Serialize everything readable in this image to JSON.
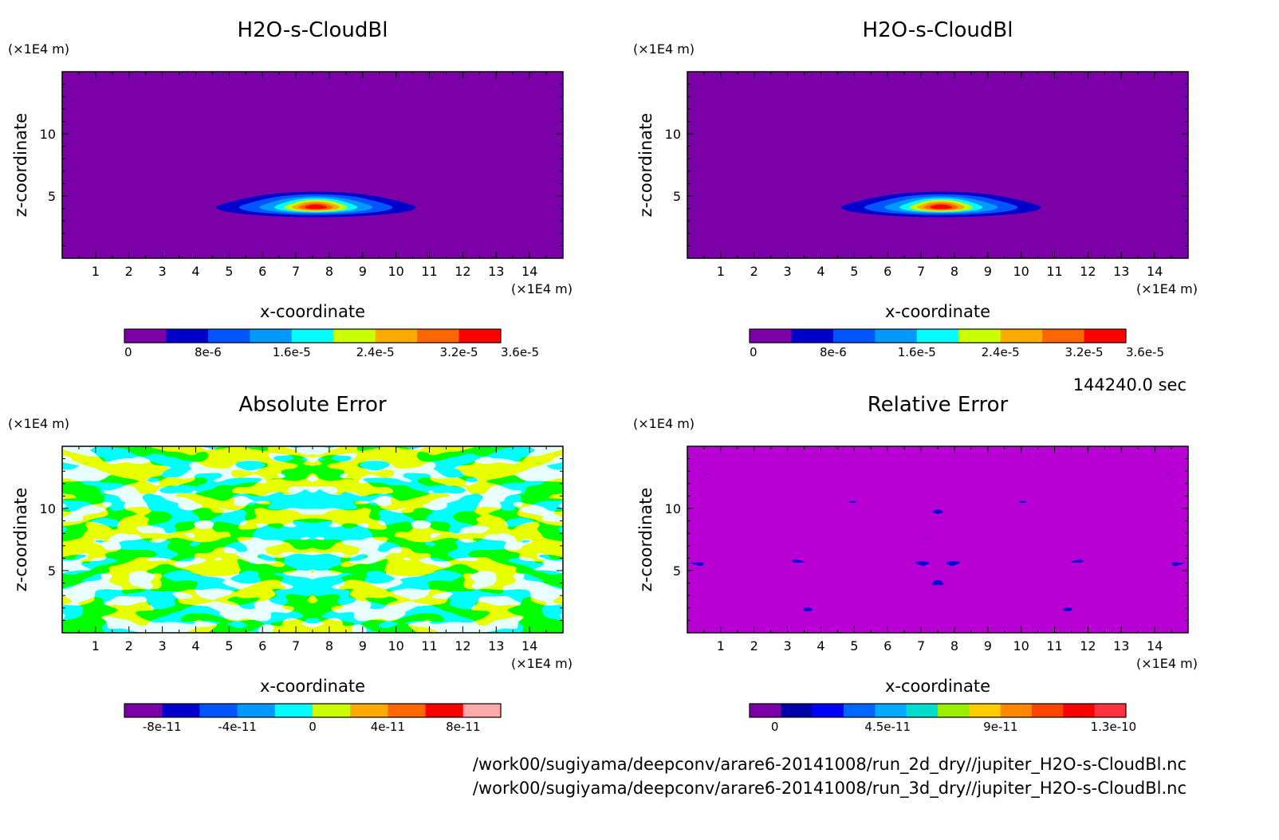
{
  "chart_data": [
    {
      "type": "heatmap",
      "title": "H2O-s-CloudBl",
      "xlabel": "x-coordinate",
      "ylabel": "z-coordinate",
      "x_unit": "(×1E4 m)",
      "y_unit": "(×1E4 m)",
      "xlim": [
        0,
        15
      ],
      "ylim": [
        0,
        15
      ],
      "x_ticks": [
        "1",
        "2",
        "3",
        "4",
        "5",
        "6",
        "7",
        "8",
        "9",
        "10",
        "11",
        "12",
        "13",
        "14"
      ],
      "y_ticks": [
        "5",
        "10"
      ],
      "field": "cloud blob centred near x=7.6, z=4.1, spanning x≈4.6–10.6, z≈3.3–5.3; zero elsewhere",
      "colorbar": {
        "levels": [
          0,
          4e-06,
          8e-06,
          1.2e-05,
          1.6e-05,
          2e-05,
          2.4e-05,
          2.8e-05,
          3.2e-05,
          3.6e-05
        ],
        "tick_labels": [
          "0",
          "8e-6",
          "1.6e-5",
          "2.4e-5",
          "3.2e-5",
          "3.6e-5"
        ],
        "colors": [
          "#7B00A8",
          "#0000CC",
          "#0055FF",
          "#0099FF",
          "#00FFFF",
          "#CCFF00",
          "#FFAA00",
          "#FF6600",
          "#FF0000"
        ]
      }
    },
    {
      "type": "heatmap",
      "title": "H2O-s-CloudBl",
      "xlabel": "x-coordinate",
      "ylabel": "z-coordinate",
      "x_unit": "(×1E4 m)",
      "y_unit": "(×1E4 m)",
      "xlim": [
        0,
        15
      ],
      "ylim": [
        0,
        15
      ],
      "x_ticks": [
        "1",
        "2",
        "3",
        "4",
        "5",
        "6",
        "7",
        "8",
        "9",
        "10",
        "11",
        "12",
        "13",
        "14"
      ],
      "y_ticks": [
        "5",
        "10"
      ],
      "field": "cloud blob centred near x=7.6, z=4.1, spanning x≈4.6–10.6, z≈3.3–5.3; zero elsewhere",
      "colorbar": {
        "levels": [
          0,
          4e-06,
          8e-06,
          1.2e-05,
          1.6e-05,
          2e-05,
          2.4e-05,
          2.8e-05,
          3.2e-05,
          3.6e-05
        ],
        "tick_labels": [
          "0",
          "8e-6",
          "1.6e-5",
          "2.4e-5",
          "3.2e-5",
          "3.6e-5"
        ],
        "colors": [
          "#7B00A8",
          "#0000CC",
          "#0055FF",
          "#0099FF",
          "#00FFFF",
          "#CCFF00",
          "#FFAA00",
          "#FF6600",
          "#FF0000"
        ]
      }
    },
    {
      "type": "heatmap",
      "title": "Absolute Error",
      "xlabel": "x-coordinate",
      "ylabel": "z-coordinate",
      "x_unit": "(×1E4 m)",
      "y_unit": "(×1E4 m)",
      "xlim": [
        0,
        15
      ],
      "ylim": [
        0,
        15
      ],
      "x_ticks": [
        "1",
        "2",
        "3",
        "4",
        "5",
        "6",
        "7",
        "8",
        "9",
        "10",
        "11",
        "12",
        "13",
        "14"
      ],
      "y_ticks": [
        "5",
        "10"
      ],
      "field": "noise pattern alternating between the -2e-11..0 (cyan) and 0..2e-11 (yellow-green) bands, mirror-symmetric about x=7.5",
      "colorbar": {
        "tick_labels": [
          "-8e-11",
          "-4e-11",
          "0",
          "4e-11",
          "8e-11"
        ],
        "colors": [
          "#7B00A8",
          "#0000CC",
          "#0055FF",
          "#0099FF",
          "#00FFFF",
          "#CCFF00",
          "#FFAA00",
          "#FF6600",
          "#FF0000",
          "#FFAAAA"
        ]
      }
    },
    {
      "type": "heatmap",
      "title": "Relative Error",
      "xlabel": "x-coordinate",
      "ylabel": "z-coordinate",
      "x_unit": "(×1E4 m)",
      "y_unit": "(×1E4 m)",
      "xlim": [
        0,
        15
      ],
      "ylim": [
        0,
        15
      ],
      "x_ticks": [
        "1",
        "2",
        "3",
        "4",
        "5",
        "6",
        "7",
        "8",
        "9",
        "10",
        "11",
        "12",
        "13",
        "14"
      ],
      "y_ticks": [
        "5",
        "10"
      ],
      "field": "noise pattern alternating between the two lowest bands (purple, dark blue), mirror-symmetric about x=7.5",
      "colorbar": {
        "tick_labels": [
          "0",
          "4.5e-11",
          "9e-11",
          "1.3e-10"
        ],
        "colors": [
          "#7B00A8",
          "#0000AA",
          "#0000FF",
          "#0066FF",
          "#00AAFF",
          "#00DDCC",
          "#99EE00",
          "#FFCC00",
          "#FF8800",
          "#FF4400",
          "#FF0000",
          "#FF3344"
        ]
      }
    }
  ],
  "time_label": "144240.0 sec",
  "file_paths": [
    "/work00/sugiyama/deepconv/arare6-20141008/run_2d_dry//jupiter_H2O-s-CloudBl.nc",
    "/work00/sugiyama/deepconv/arare6-20141008/run_3d_dry//jupiter_H2O-s-CloudBl.nc"
  ]
}
